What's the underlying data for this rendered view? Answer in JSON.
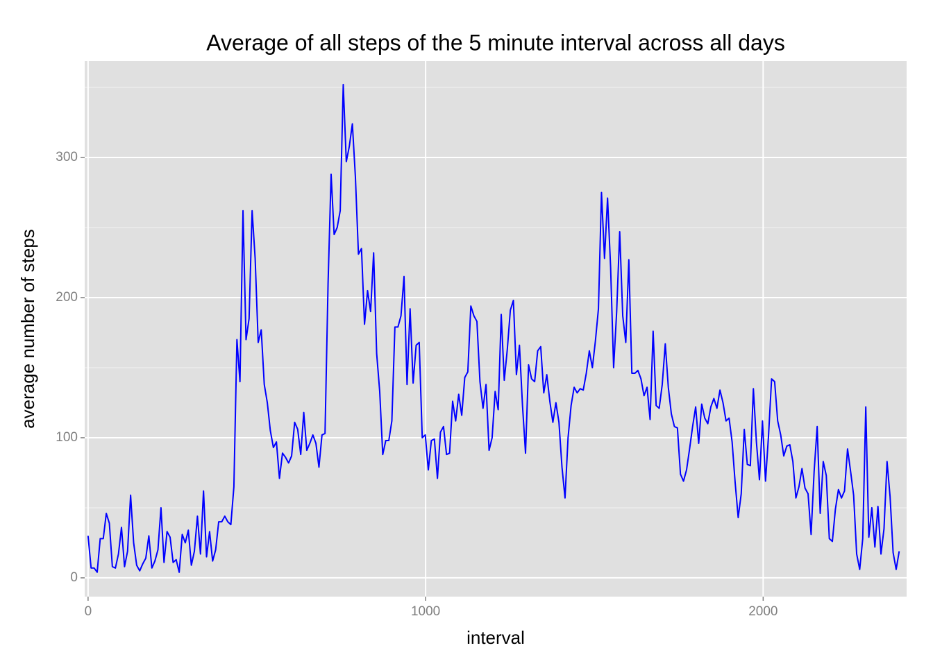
{
  "chart_data": {
    "type": "line",
    "title": "Average of all steps of the 5 minute interval across all days",
    "x_label": "interval",
    "y_label": "average number of steps",
    "x": [
      0,
      9,
      18,
      27,
      36,
      45,
      54,
      63,
      72,
      81,
      90,
      99,
      108,
      117,
      126,
      135,
      144,
      153,
      162,
      171,
      180,
      189,
      198,
      207,
      216,
      225,
      234,
      243,
      252,
      261,
      270,
      279,
      288,
      297,
      306,
      315,
      324,
      333,
      342,
      351,
      360,
      369,
      378,
      387,
      396,
      405,
      414,
      423,
      432,
      441,
      450,
      459,
      468,
      477,
      486,
      495,
      504,
      513,
      522,
      531,
      540,
      549,
      558,
      567,
      576,
      585,
      594,
      603,
      612,
      621,
      630,
      639,
      648,
      657,
      666,
      675,
      684,
      693,
      702,
      711,
      720,
      729,
      738,
      747,
      756,
      765,
      774,
      783,
      792,
      801,
      810,
      819,
      828,
      837,
      846,
      855,
      864,
      873,
      882,
      891,
      900,
      909,
      918,
      927,
      936,
      945,
      954,
      963,
      972,
      981,
      990,
      999,
      1008,
      1017,
      1026,
      1035,
      1044,
      1053,
      1062,
      1071,
      1080,
      1089,
      1098,
      1107,
      1116,
      1125,
      1134,
      1143,
      1152,
      1161,
      1170,
      1179,
      1188,
      1197,
      1206,
      1215,
      1224,
      1233,
      1242,
      1251,
      1260,
      1269,
      1278,
      1287,
      1296,
      1305,
      1314,
      1323,
      1332,
      1341,
      1350,
      1359,
      1368,
      1377,
      1386,
      1395,
      1404,
      1413,
      1422,
      1431,
      1440,
      1449,
      1458,
      1467,
      1476,
      1485,
      1494,
      1503,
      1512,
      1521,
      1530,
      1539,
      1548,
      1557,
      1566,
      1575,
      1584,
      1593,
      1602,
      1611,
      1620,
      1629,
      1638,
      1647,
      1656,
      1665,
      1674,
      1683,
      1692,
      1701,
      1710,
      1719,
      1728,
      1737,
      1746,
      1755,
      1764,
      1773,
      1782,
      1791,
      1800,
      1809,
      1818,
      1827,
      1836,
      1845,
      1854,
      1863,
      1872,
      1881,
      1890,
      1899,
      1908,
      1917,
      1926,
      1935,
      1944,
      1953,
      1962,
      1971,
      1980,
      1989,
      1998,
      2007,
      2016,
      2025,
      2034,
      2043,
      2052,
      2061,
      2070,
      2079,
      2088,
      2097,
      2106,
      2115,
      2124,
      2133,
      2142,
      2151,
      2160,
      2169,
      2178,
      2187,
      2196,
      2205,
      2214,
      2223,
      2232,
      2241,
      2250,
      2259,
      2268,
      2277,
      2286,
      2295,
      2304,
      2313,
      2322,
      2331,
      2340,
      2349,
      2358,
      2367,
      2376,
      2385,
      2394,
      2403
    ],
    "values": [
      30,
      7,
      7,
      4,
      28,
      28,
      46,
      39,
      8,
      7,
      17,
      36,
      8,
      19,
      59,
      25,
      9,
      5,
      10,
      14,
      30,
      7,
      12,
      20,
      50,
      11,
      33,
      29,
      11,
      13,
      4,
      31,
      25,
      34,
      9,
      19,
      44,
      17,
      62,
      15,
      33,
      12,
      20,
      40,
      40,
      44,
      40,
      38,
      65,
      170,
      140,
      262,
      170,
      185,
      262,
      228,
      168,
      177,
      138,
      125,
      105,
      93,
      97,
      71,
      89,
      86,
      82,
      87,
      111,
      106,
      88,
      118,
      91,
      96,
      102,
      96,
      79,
      102,
      103,
      210,
      288,
      245,
      250,
      262,
      352,
      297,
      308,
      324,
      286,
      231,
      235,
      181,
      205,
      190,
      232,
      160,
      133,
      88,
      98,
      98,
      112,
      179,
      179,
      187,
      215,
      138,
      192,
      139,
      166,
      168,
      100,
      102,
      77,
      98,
      99,
      71,
      104,
      108,
      88,
      89,
      126,
      112,
      131,
      116,
      143,
      147,
      194,
      187,
      183,
      140,
      121,
      138,
      91,
      100,
      133,
      120,
      188,
      141,
      163,
      191,
      198,
      145,
      166,
      123,
      89,
      152,
      142,
      140,
      162,
      165,
      132,
      145,
      126,
      111,
      125,
      111,
      79,
      57,
      100,
      123,
      136,
      132,
      135,
      134,
      146,
      162,
      150,
      169,
      192,
      275,
      228,
      271,
      222,
      150,
      190,
      247,
      187,
      168,
      227,
      146,
      146,
      148,
      142,
      130,
      136,
      113,
      176,
      123,
      121,
      138,
      167,
      136,
      117,
      108,
      107,
      74,
      69,
      77,
      92,
      108,
      122,
      96,
      124,
      114,
      110,
      122,
      128,
      121,
      134,
      125,
      112,
      114,
      97,
      68,
      43,
      60,
      106,
      81,
      80,
      135,
      97,
      70,
      112,
      69,
      102,
      142,
      140,
      112,
      102,
      87,
      94,
      95,
      83,
      57,
      65,
      78,
      64,
      60,
      31,
      76,
      108,
      46,
      83,
      73,
      28,
      26,
      49,
      63,
      57,
      62,
      92,
      76,
      59,
      17,
      6,
      28,
      122,
      29,
      50,
      22,
      51,
      17,
      35,
      83,
      58,
      18,
      6,
      19
    ],
    "color": "#0000ff",
    "xlim": [
      -10,
      2425
    ],
    "xticks": [
      0,
      1000,
      2000
    ],
    "ylim": [
      -13.4,
      368.8
    ],
    "yticks": [
      0,
      100,
      200,
      300
    ],
    "y_minor_ticks": [
      50,
      150,
      250,
      350
    ],
    "grid": true
  }
}
